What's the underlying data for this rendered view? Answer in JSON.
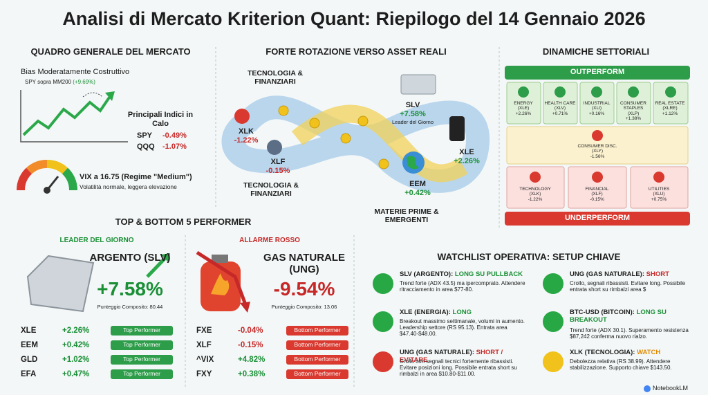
{
  "header": {
    "title": "Analisi di Mercato Kriterion Quant: Riepilogo del 14 Gennaio 2026"
  },
  "overview": {
    "heading": "QUADRO GENERALE DEL MERCATO",
    "bias": "Bias Moderatamente Costruttivo",
    "spy_note": "SPY sopra MM200",
    "spy_note_value": "(+9.69%)",
    "indices_title": "Principali Indici in Calo",
    "indices": [
      {
        "ticker": "SPY",
        "change": "-0.49%"
      },
      {
        "ticker": "QQQ",
        "change": "-1.07%"
      }
    ],
    "vix": "VIX a 16.75 (Regime \"Medium\")",
    "vix_note": "Volatilità normale, leggera elevazione"
  },
  "rotation": {
    "heading": "FORTE ROTAZIONE VERSO ASSET REALI",
    "from_top": "TECNOLOGIA & FINANZIARI",
    "from_bottom": "TECNOLOGIA & FINANZIARI",
    "to": "MATERIE PRIME & EMERGENTI",
    "assets": [
      {
        "ticker": "XLK",
        "change": "-1.22%"
      },
      {
        "ticker": "XLF",
        "change": "-0.15%"
      },
      {
        "ticker": "SLV",
        "change": "+7.58%",
        "note": "Leader del Giorno"
      },
      {
        "ticker": "XLE",
        "change": "+2.26%"
      },
      {
        "ticker": "EEM",
        "change": "+0.42%"
      }
    ]
  },
  "sectors": {
    "heading": "DINAMICHE SETTORIALI",
    "outperform_label": "OUTPERFORM",
    "underperform_label": "UNDERPERFORM",
    "outperform": [
      {
        "name": "ENERGY",
        "ticker": "(XLE)",
        "change": "+2.26%"
      },
      {
        "name": "HEALTH CARE",
        "ticker": "(XLV)",
        "change": "+0.71%"
      },
      {
        "name": "INDUSTRIAL",
        "ticker": "(XLI)",
        "change": "+0.16%"
      },
      {
        "name": "CONSUMER STAPLES",
        "ticker": "(XLP)",
        "change": "+1.38%"
      },
      {
        "name": "REAL ESTATE",
        "ticker": "(XLRE)",
        "change": "+1.12%"
      }
    ],
    "neutral": [
      {
        "name": "CONSUMER DISC.",
        "ticker": "(XLY)",
        "change": "-1.56%"
      }
    ],
    "underperform": [
      {
        "name": "TECHNOLOGY",
        "ticker": "(XLK)",
        "change": "-1.22%"
      },
      {
        "name": "FINANCIAL",
        "ticker": "(XLF)",
        "change": "-0.15%"
      },
      {
        "name": "UTILITIES",
        "ticker": "(XLU)",
        "change": "+0.75%"
      }
    ]
  },
  "performers": {
    "heading": "TOP & BOTTOM 5 PERFORMER",
    "leader": {
      "label": "LEADER DEL GIORNO",
      "name": "ARGENTO (SLV)",
      "change": "+7.58%",
      "score": "Punteggio Composito: 80.44",
      "rows": [
        {
          "ticker": "XLE",
          "change": "+2.26%",
          "tag": "Top Performer"
        },
        {
          "ticker": "EEM",
          "change": "+0.42%",
          "tag": "Top Performer"
        },
        {
          "ticker": "GLD",
          "change": "+1.02%",
          "tag": "Top Performer"
        },
        {
          "ticker": "EFA",
          "change": "+0.47%",
          "tag": "Top Performer"
        }
      ]
    },
    "alarm": {
      "label": "ALLARME ROSSO",
      "name": "GAS NATURALE (UNG)",
      "change": "-9.54%",
      "score": "Punteggio Composito: 13.06",
      "rows": [
        {
          "ticker": "FXE",
          "change": "-0.04%",
          "tag": "Bottom Performer"
        },
        {
          "ticker": "XLF",
          "change": "-0.15%",
          "tag": "Bottom Performer"
        },
        {
          "ticker": "^VIX",
          "change": "+4.82%",
          "tag": "Bottom Performer"
        },
        {
          "ticker": "FXY",
          "change": "+0.38%",
          "tag": "Bottom Performer"
        }
      ]
    }
  },
  "watchlist": {
    "heading": "WATCHLIST OPERATIVA: SETUP CHIAVE",
    "items": [
      {
        "title": "SLV (ARGENTO):",
        "status": "LONG SU PULLBACK",
        "color": "#27a844",
        "status_color": "#1a8f36",
        "text": "Trend forte (ADX 43.5) ma ipercomprato. Attendere ritracciamento in area $77-80."
      },
      {
        "title": "XLE (ENERGIA):",
        "status": "LONG",
        "color": "#27a844",
        "status_color": "#1a8f36",
        "text": "Breakout massimo settimanale, volumi in aumento. Leadership settore (RS 95.13). Entrata area $47.40-$48.00."
      },
      {
        "title": "UNG (GAS NATURALE):",
        "status": "SHORT / EVITARE",
        "color": "#d9392f",
        "status_color": "#c62828",
        "text": "Crollo con segnali tecnici fortemente ribassisti. Evitare posizioni long. Possibile entrata short su rimbalzi in area $10.80-$11.00."
      },
      {
        "title": "UNG (GAS NATURALE):",
        "status": "SHORT",
        "color": "#27a844",
        "status_color": "#c62828",
        "text": "Crollo, segnali ribassisti. Evitare long. Possibile entrata short su rimbalzi area $"
      },
      {
        "title": "BTC-USD (BITCOIN):",
        "status": "LONG SU BREAKOUT",
        "color": "#27a844",
        "status_color": "#1a8f36",
        "text": "Trend forte (ADX 30.1). Superamento resistenza $87,242 conferma nuovo rialzo."
      },
      {
        "title": "XLK (TECNOLOGIA):",
        "status": "WATCH",
        "color": "#f1c21b",
        "status_color": "#e08a00",
        "text": "Debolezza relativa (RS 38.99). Attendere stabilizzazione. Supporto chiave $143.50."
      }
    ]
  },
  "footer": {
    "brand": "NotebookLM"
  }
}
